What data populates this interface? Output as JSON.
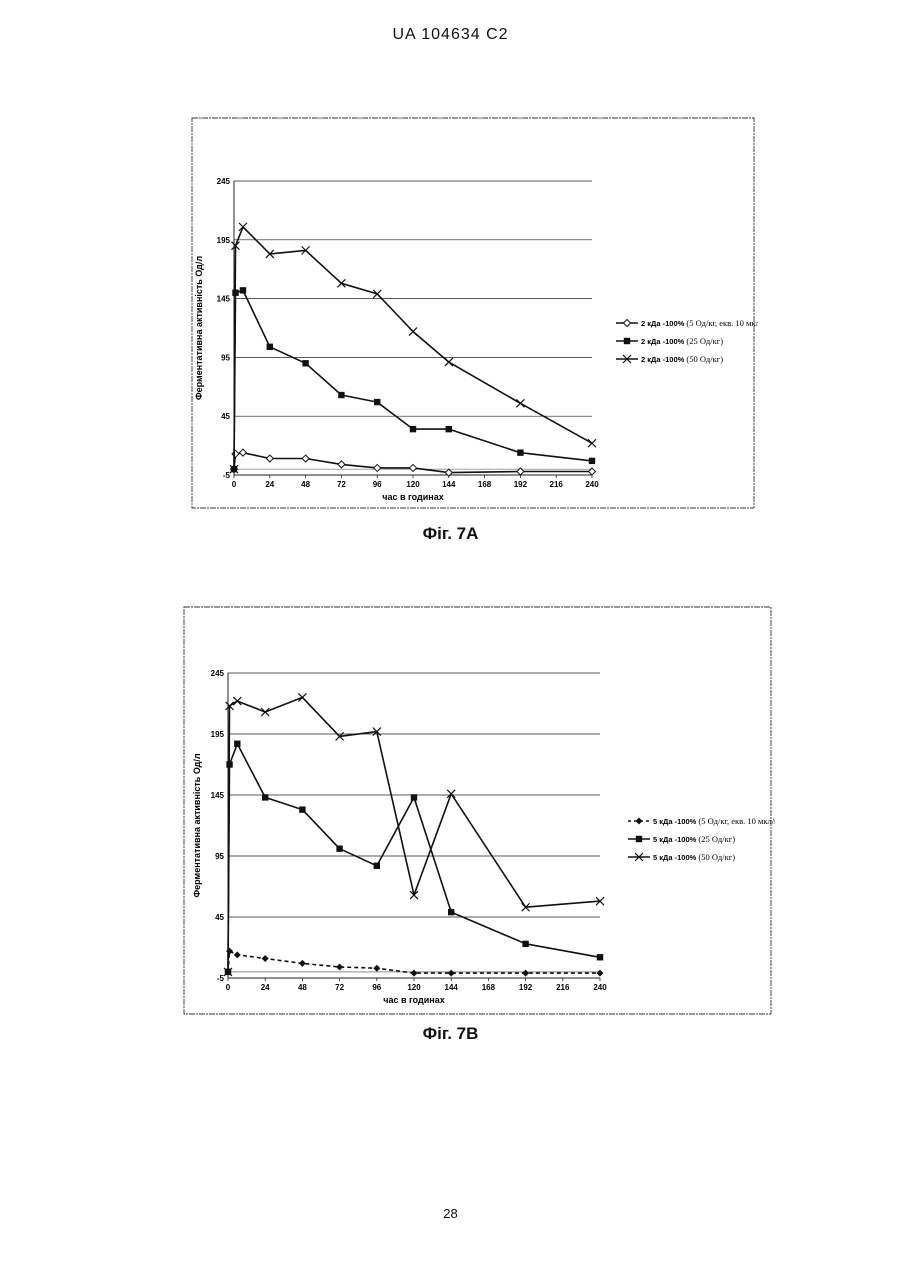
{
  "header": {
    "doc_id": "UA   104634   C2"
  },
  "page_number": "28",
  "chart_data": [
    {
      "type": "line",
      "caption": "Фіг. 7A",
      "xlabel": "час в годинах",
      "ylabel": "Ферментативна активність Од/л",
      "ylim": [
        -5,
        245
      ],
      "xlim": [
        0,
        240
      ],
      "y_ticks": [
        245,
        195,
        145,
        95,
        45,
        -5
      ],
      "x_ticks": [
        0,
        24,
        48,
        72,
        96,
        120,
        144,
        168,
        192,
        216,
        240
      ],
      "grid": "horizontal",
      "legend_position": "right",
      "series": [
        {
          "legend_bold": "2 кДа -100%",
          "legend_rest": " (5 Од/кг, екв. 10 мкл/кг)",
          "marker": "diamond-open",
          "dash": "solid",
          "x": [
            0,
            1,
            6,
            24,
            48,
            72,
            96,
            120,
            144,
            192,
            240
          ],
          "y": [
            0,
            13,
            14,
            9,
            9,
            4,
            1,
            1,
            -3,
            -2,
            -2
          ]
        },
        {
          "legend_bold": "2 кДа -100%",
          "legend_rest": " (25 Од/кг)",
          "marker": "square",
          "dash": "solid",
          "x": [
            0,
            1,
            6,
            24,
            48,
            72,
            96,
            120,
            144,
            192,
            240
          ],
          "y": [
            0,
            150,
            152,
            104,
            90,
            63,
            57,
            34,
            34,
            14,
            7
          ]
        },
        {
          "legend_bold": "2 кДа -100%",
          "legend_rest": " (50 Од/кг)",
          "marker": "x",
          "dash": "solid",
          "x": [
            0,
            1,
            6,
            24,
            48,
            72,
            96,
            120,
            144,
            192,
            240
          ],
          "y": [
            0,
            190,
            206,
            183,
            186,
            158,
            149,
            117,
            91,
            56,
            22
          ]
        }
      ]
    },
    {
      "type": "line",
      "caption": "Фіг. 7В",
      "xlabel": "час в годинах",
      "ylabel": "Ферментативна активність Од/л",
      "ylim": [
        -5,
        245
      ],
      "xlim": [
        0,
        240
      ],
      "y_ticks": [
        245,
        195,
        145,
        95,
        45,
        -5
      ],
      "x_ticks": [
        0,
        24,
        48,
        72,
        96,
        120,
        144,
        168,
        192,
        216,
        240
      ],
      "grid": "horizontal",
      "legend_position": "right",
      "series": [
        {
          "legend_bold": "5 кДа -100%",
          "legend_rest": " (5 Од/кг, екв. 10 мкл/кг)",
          "marker": "diamond",
          "dash": "dashed",
          "x": [
            0,
            1,
            6,
            24,
            48,
            72,
            96,
            120,
            144,
            192,
            240
          ],
          "y": [
            0,
            17,
            14,
            11,
            7,
            4,
            3,
            -1,
            -1,
            -1,
            -1
          ]
        },
        {
          "legend_bold": "5 кДа -100%",
          "legend_rest": " (25 Од/кг)",
          "marker": "square",
          "dash": "solid",
          "x": [
            0,
            1,
            6,
            24,
            48,
            72,
            96,
            120,
            144,
            192,
            240
          ],
          "y": [
            0,
            170,
            187,
            143,
            133,
            101,
            87,
            143,
            49,
            23,
            12
          ]
        },
        {
          "legend_bold": "5 кДа -100%",
          "legend_rest": " (50 Од/кг)",
          "marker": "x",
          "dash": "solid",
          "x": [
            0,
            1,
            6,
            24,
            48,
            72,
            96,
            120,
            144,
            192,
            240
          ],
          "y": [
            0,
            218,
            222,
            213,
            225,
            193,
            197,
            63,
            146,
            53,
            58
          ]
        }
      ]
    }
  ]
}
